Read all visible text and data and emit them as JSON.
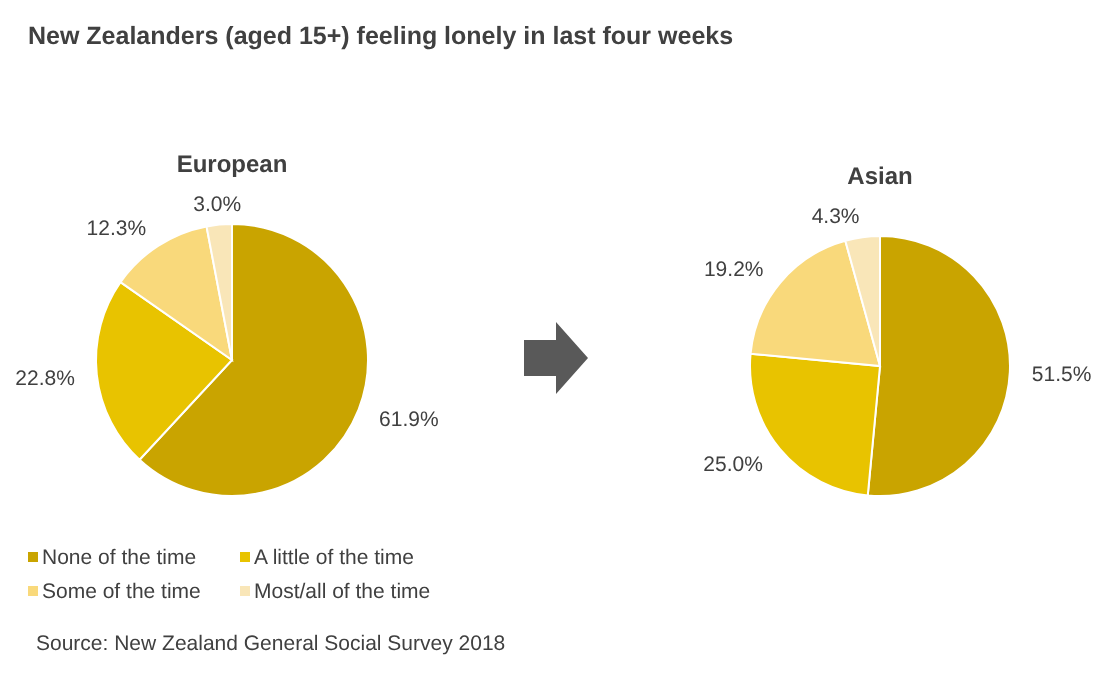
{
  "chart_data": [
    {
      "type": "pie",
      "title": "New Zealanders (aged 15+) feeling lonely in last four weeks",
      "subtitle": "European",
      "categories": [
        "None of the time",
        "A little of the time",
        "Some of the time",
        "Most/all of the time"
      ],
      "values": [
        61.9,
        22.8,
        12.3,
        3.0
      ],
      "value_labels": [
        "61.9%",
        "22.8%",
        "12.3%",
        "3.0%"
      ],
      "colors": [
        "#c9a400",
        "#e8c300",
        "#f9d97b",
        "#f9e6b8"
      ],
      "legend": "bottom",
      "annotations": [
        "Source: New Zealand General Social Survey 2018"
      ]
    },
    {
      "type": "pie",
      "subtitle": "Asian",
      "categories": [
        null,
        null,
        null,
        null
      ],
      "values": [
        51.5,
        25.0,
        19.2,
        4.3
      ],
      "value_labels": [
        "51.5%",
        "25.0%",
        "19.2%",
        "4.3%"
      ],
      "colors": [
        "#c9a400",
        "#e8c300",
        "#f9d97b",
        "#f9e6b8"
      ]
    }
  ]
}
